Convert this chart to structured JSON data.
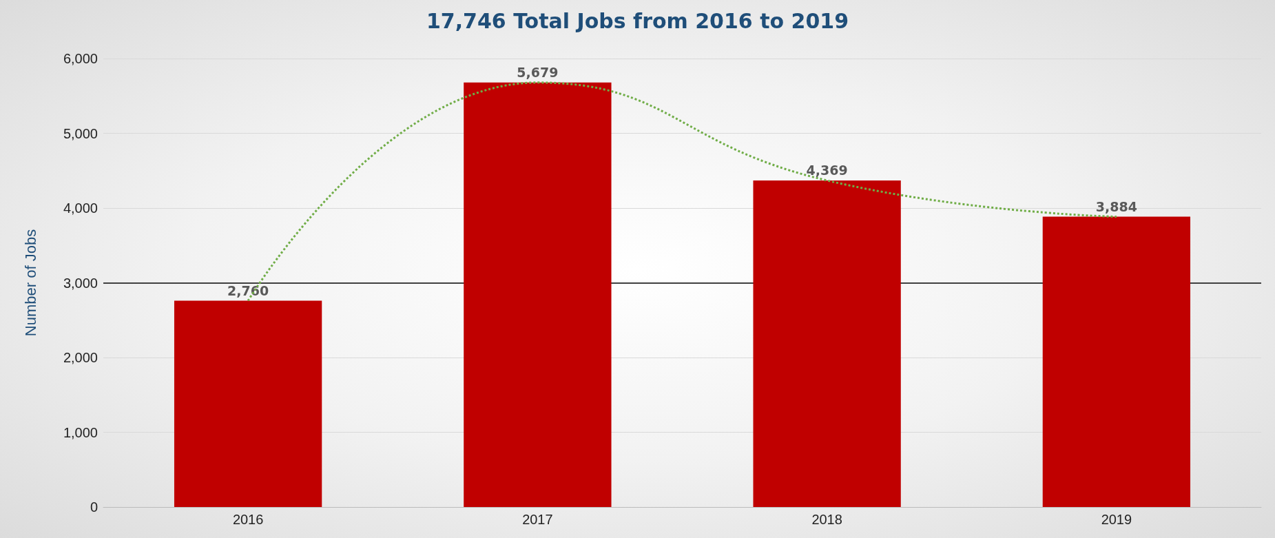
{
  "chart_data": {
    "type": "bar",
    "title": "17,746 Total Jobs from 2016 to 2019",
    "ylabel": "Number of Jobs",
    "categories": [
      "2016",
      "2017",
      "2018",
      "2019"
    ],
    "series": [
      {
        "color": "#c00000",
        "values": [
          2760,
          5679,
          4369,
          3884
        ],
        "value_labels": [
          "2,760",
          "5,679",
          "4,369",
          "3,884"
        ]
      },
      {
        "type": "line",
        "color": "#70ad47",
        "line_style": "dotted",
        "values": [
          2760,
          5679,
          4369,
          3884
        ]
      }
    ],
    "ylim": [
      0,
      6000
    ],
    "yticks": [
      0,
      {
        "value": 1000,
        "label": "1,000"
      },
      {
        "value": 2000,
        "label": "2,000"
      },
      {
        "value": 3000,
        "label": "3,000"
      },
      {
        "value": 4000,
        "label": "4,000"
      },
      {
        "value": 5000,
        "label": "5,000"
      },
      {
        "value": 6000,
        "label": "6,000"
      }
    ],
    "grid": "y",
    "marker": "none",
    "ref_lines": [
      {
        "axis": "y",
        "value": 3000,
        "color": "#404040",
        "line_style": "solid"
      }
    ]
  }
}
